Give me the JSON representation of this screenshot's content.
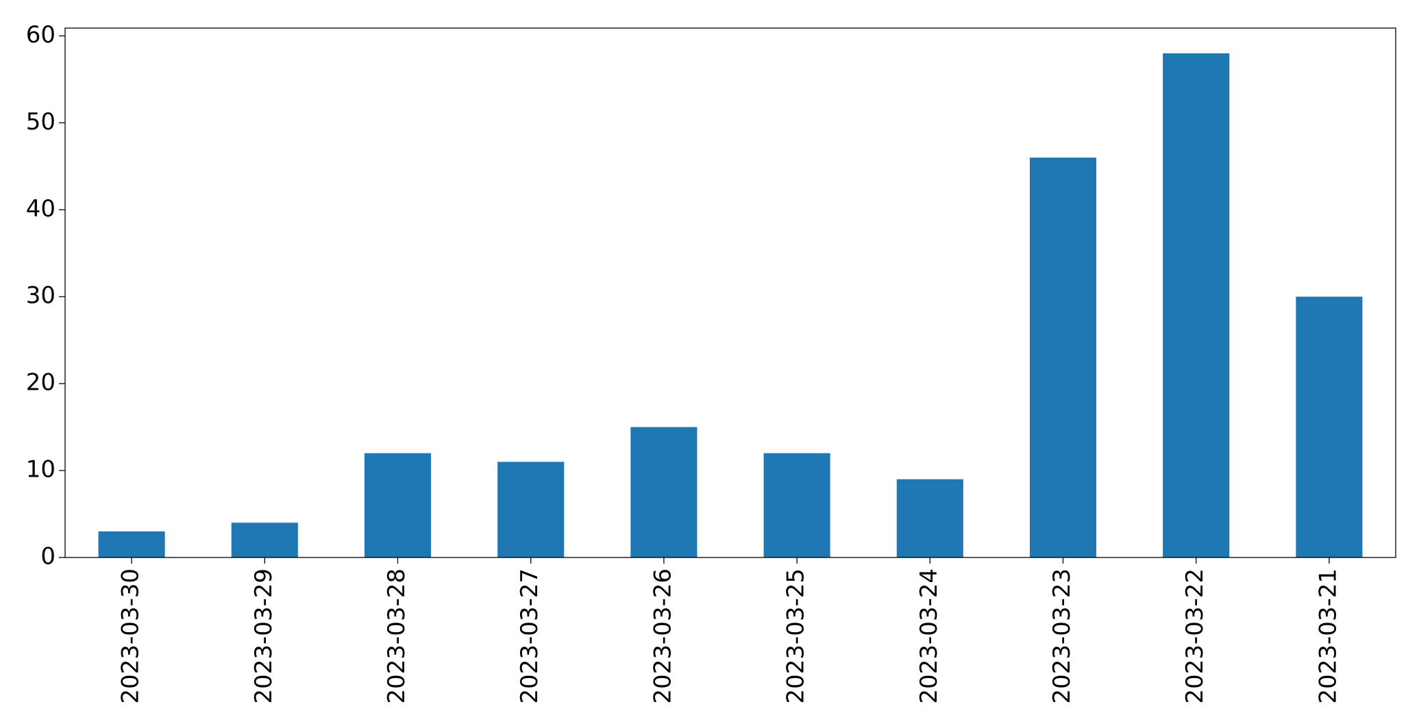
{
  "chart_data": {
    "type": "bar",
    "categories": [
      "2023-03-30",
      "2023-03-29",
      "2023-03-28",
      "2023-03-27",
      "2023-03-26",
      "2023-03-25",
      "2023-03-24",
      "2023-03-23",
      "2023-03-22",
      "2023-03-21"
    ],
    "values": [
      3,
      4,
      12,
      11,
      15,
      12,
      9,
      46,
      58,
      30
    ],
    "color": "#1f77b4",
    "ylim": [
      0,
      60.9
    ],
    "yticks": [
      0,
      10,
      20,
      30,
      40,
      50,
      60
    ],
    "grid": false
  }
}
